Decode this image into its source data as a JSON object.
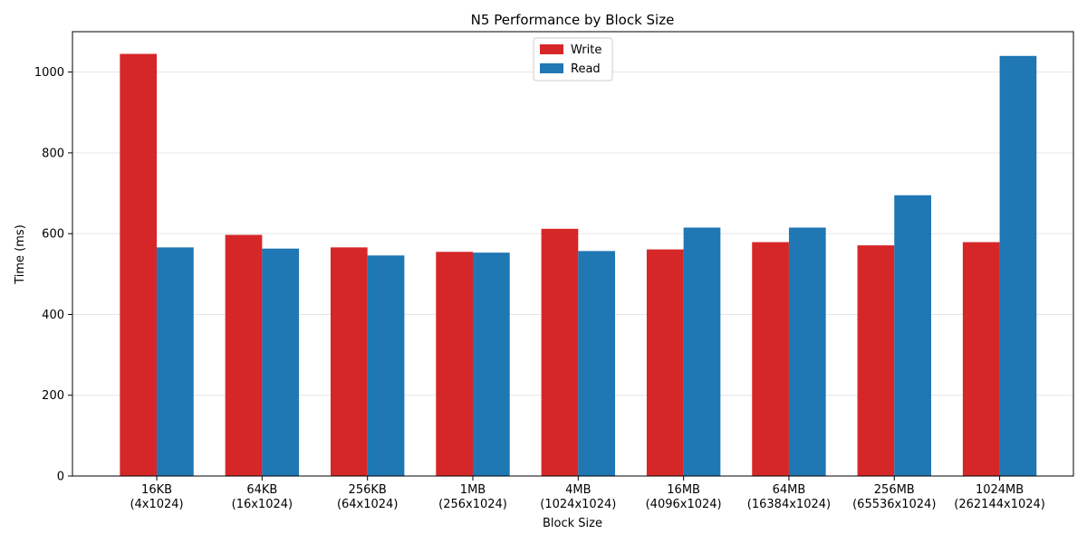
{
  "chart_data": {
    "type": "bar",
    "title": "N5 Performance by Block Size",
    "xlabel": "Block Size",
    "ylabel": "Time (ms)",
    "ylim": [
      0,
      1100
    ],
    "yticks": [
      0,
      200,
      400,
      600,
      800,
      1000
    ],
    "grid": "y",
    "legend_position": "top-center",
    "categories": [
      "16KB\n(4x1024)",
      "64KB\n(16x1024)",
      "256KB\n(64x1024)",
      "1MB\n(256x1024)",
      "4MB\n(1024x1024)",
      "16MB\n(4096x1024)",
      "64MB\n(16384x1024)",
      "256MB\n(65536x1024)",
      "1024MB\n(262144x1024)"
    ],
    "series": [
      {
        "name": "Write",
        "color": "#d62728",
        "values": [
          1045,
          597,
          566,
          555,
          612,
          561,
          579,
          571,
          579
        ]
      },
      {
        "name": "Read",
        "color": "#1f77b4",
        "values": [
          566,
          563,
          546,
          553,
          557,
          615,
          615,
          695,
          1040
        ]
      }
    ]
  }
}
